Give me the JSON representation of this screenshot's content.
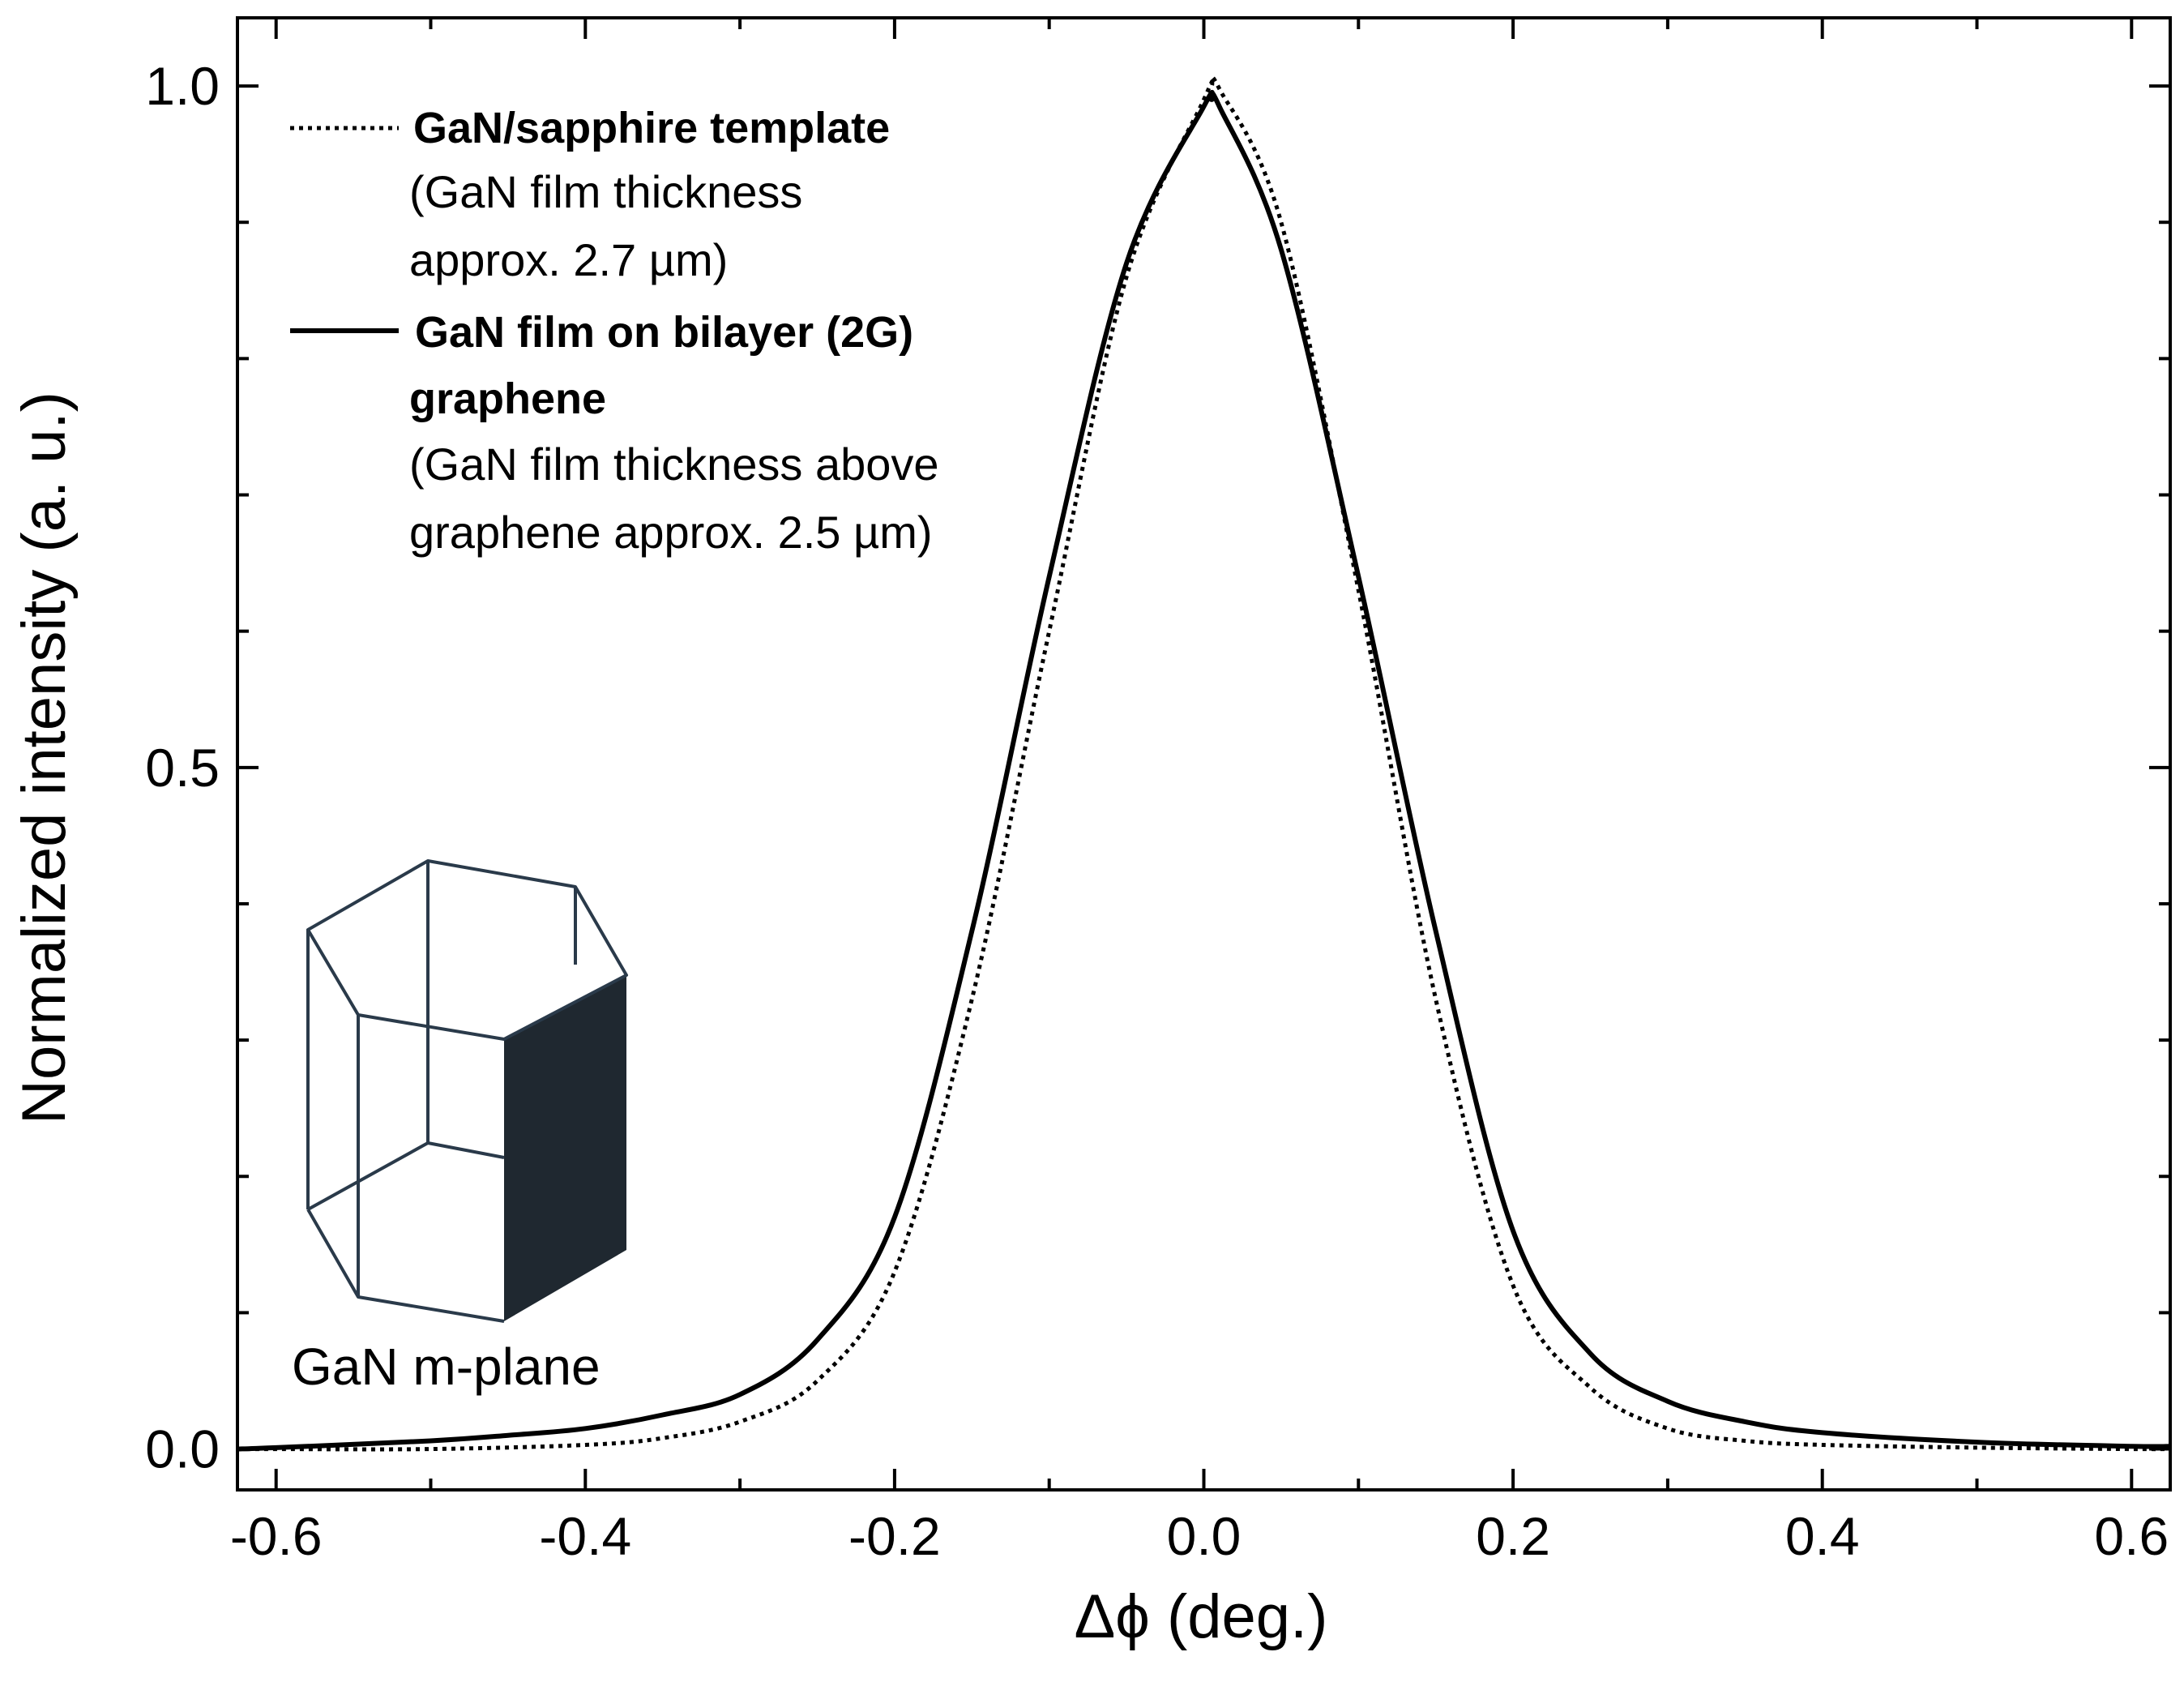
{
  "chart_data": {
    "type": "line",
    "xlabel": "Δϕ (deg.)",
    "ylabel": "Normalized intensity (a. u.)",
    "xlim": [
      -0.625,
      0.625
    ],
    "ylim": [
      -0.03,
      1.05
    ],
    "x_ticks": [
      -0.6,
      -0.4,
      -0.2,
      0.0,
      0.2,
      0.4,
      0.6
    ],
    "x_tick_labels": [
      "-0.6",
      "-0.4",
      "-0.2",
      "0.0",
      "0.2",
      "0.4",
      "0.6"
    ],
    "y_ticks": [
      0.0,
      0.5,
      1.0
    ],
    "y_tick_labels": [
      "0.0",
      "0.5",
      "1.0"
    ],
    "x_minor_step": 0.1,
    "y_minor_step": 0.1,
    "series": [
      {
        "name": "GaN/sapphire template",
        "style": "dotted",
        "x": [
          -0.625,
          -0.6,
          -0.5,
          -0.4,
          -0.35,
          -0.3,
          -0.25,
          -0.2,
          -0.15,
          -0.1,
          -0.05,
          0.0,
          0.005,
          0.01,
          0.05,
          0.1,
          0.15,
          0.2,
          0.25,
          0.3,
          0.35,
          0.4,
          0.5,
          0.6,
          0.625
        ],
        "y": [
          0.0,
          0.0,
          0.0,
          0.003,
          0.008,
          0.02,
          0.05,
          0.13,
          0.33,
          0.6,
          0.86,
          0.99,
          1.0,
          0.998,
          0.9,
          0.63,
          0.33,
          0.12,
          0.045,
          0.015,
          0.006,
          0.003,
          0.001,
          0.0,
          0.0
        ]
      },
      {
        "name": "GaN film on bilayer (2G) graphene",
        "style": "solid",
        "x": [
          -0.625,
          -0.6,
          -0.5,
          -0.45,
          -0.4,
          -0.35,
          -0.3,
          -0.25,
          -0.2,
          -0.15,
          -0.1,
          -0.05,
          0.0,
          0.005,
          0.01,
          0.05,
          0.1,
          0.15,
          0.2,
          0.25,
          0.3,
          0.35,
          0.4,
          0.5,
          0.6,
          0.625
        ],
        "y": [
          0.0,
          0.001,
          0.006,
          0.01,
          0.015,
          0.025,
          0.04,
          0.08,
          0.17,
          0.38,
          0.64,
          0.87,
          0.985,
          0.99,
          0.985,
          0.88,
          0.64,
          0.38,
          0.16,
          0.07,
          0.035,
          0.02,
          0.012,
          0.005,
          0.002,
          0.002
        ]
      }
    ],
    "legend": [
      {
        "style": "dotted",
        "bold": [
          "GaN/sapphire template"
        ],
        "plain": [
          "(GaN film thickness",
          "approx. 2.7 µm)"
        ]
      },
      {
        "style": "solid",
        "bold": [
          "GaN film on bilayer (2G)",
          "graphene"
        ],
        "plain": [
          "(GaN film thickness above",
          "graphene approx. 2.5 µm)"
        ]
      }
    ],
    "inset": {
      "caption": "GaN m-plane",
      "fill_color": "#1f2830",
      "line_color": "#2a3a4a"
    }
  }
}
